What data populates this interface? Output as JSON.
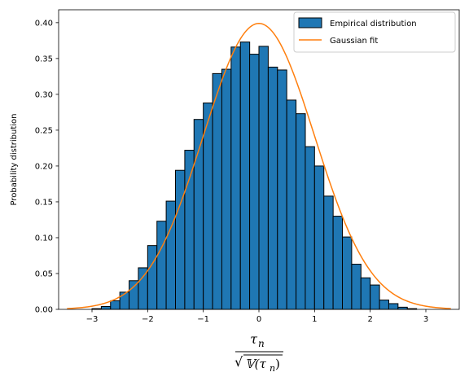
{
  "chart_data": {
    "type": "bar",
    "title": "",
    "ylabel": "Probability distribution",
    "xlabel": {
      "numerator": "τ",
      "numerator_sub": "n",
      "denominator_prefix": "√",
      "denominator_var": "𝕍(τ",
      "denominator_sub": "n",
      "denominator_close": ")"
    },
    "xlim": [
      -3.6,
      3.6
    ],
    "ylim": [
      0,
      0.418
    ],
    "xticks": [
      -3,
      -2,
      -1,
      0,
      1,
      2,
      3
    ],
    "xtick_labels": [
      "−3",
      "−2",
      "−1",
      "0",
      "1",
      "2",
      "3"
    ],
    "yticks": [
      0.0,
      0.05,
      0.1,
      0.15,
      0.2,
      0.25,
      0.3,
      0.35,
      0.4
    ],
    "ytick_labels": [
      "0.00",
      "0.05",
      "0.10",
      "0.15",
      "0.20",
      "0.25",
      "0.30",
      "0.35",
      "0.40"
    ],
    "grid": false,
    "legend_position": "top-right",
    "histogram": {
      "name": "Empirical distribution",
      "color": "#1f77b4",
      "edge_color": "#000000",
      "bin_width": 0.167,
      "bin_starts": [
        -3.0,
        -2.833,
        -2.667,
        -2.5,
        -2.333,
        -2.167,
        -2.0,
        -1.833,
        -1.667,
        -1.5,
        -1.333,
        -1.167,
        -1.0,
        -0.833,
        -0.667,
        -0.5,
        -0.333,
        -0.167,
        0.0,
        0.167,
        0.333,
        0.5,
        0.667,
        0.833,
        1.0,
        1.167,
        1.333,
        1.5,
        1.667,
        1.833,
        2.0,
        2.167,
        2.333,
        2.5,
        2.667,
        2.833
      ],
      "values": [
        0.001,
        0.004,
        0.012,
        0.024,
        0.04,
        0.058,
        0.089,
        0.123,
        0.151,
        0.194,
        0.222,
        0.265,
        0.288,
        0.329,
        0.335,
        0.366,
        0.373,
        0.356,
        0.367,
        0.338,
        0.334,
        0.292,
        0.273,
        0.227,
        0.2,
        0.158,
        0.13,
        0.101,
        0.063,
        0.044,
        0.034,
        0.013,
        0.008,
        0.003,
        0.001,
        0.0
      ]
    },
    "fit": {
      "name": "Gaussian fit",
      "color": "#ff7f0e",
      "type": "gaussian",
      "mean": 0.0,
      "std": 1.0,
      "x_range": [
        -3.45,
        3.45
      ]
    }
  }
}
